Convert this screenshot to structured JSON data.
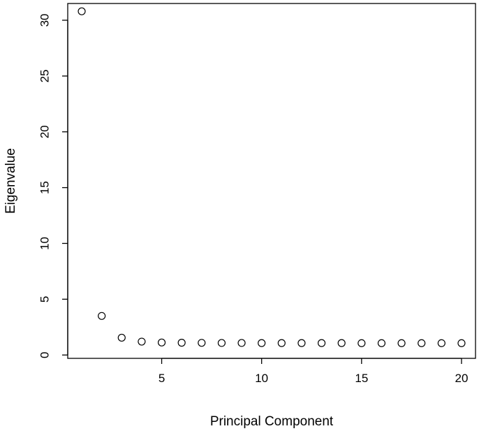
{
  "chart_data": {
    "type": "scatter",
    "title": "",
    "xlabel": "Principal Component",
    "ylabel": "Eigenvalue",
    "xlim": [
      0.3,
      20.7
    ],
    "ylim": [
      -0.3,
      31.5
    ],
    "xticks": [
      5,
      10,
      15,
      20
    ],
    "yticks": [
      0,
      5,
      10,
      15,
      20,
      25,
      30
    ],
    "grid": false,
    "marker": "open-circle",
    "colors": {
      "marker": "#000000",
      "axis": "#000000",
      "background": "#ffffff"
    },
    "x": [
      1,
      2,
      3,
      4,
      5,
      6,
      7,
      8,
      9,
      10,
      11,
      12,
      13,
      14,
      15,
      16,
      17,
      18,
      19,
      20
    ],
    "y": [
      30.8,
      3.5,
      1.55,
      1.2,
      1.12,
      1.1,
      1.09,
      1.08,
      1.08,
      1.07,
      1.07,
      1.07,
      1.07,
      1.07,
      1.06,
      1.06,
      1.06,
      1.06,
      1.06,
      1.06
    ]
  }
}
